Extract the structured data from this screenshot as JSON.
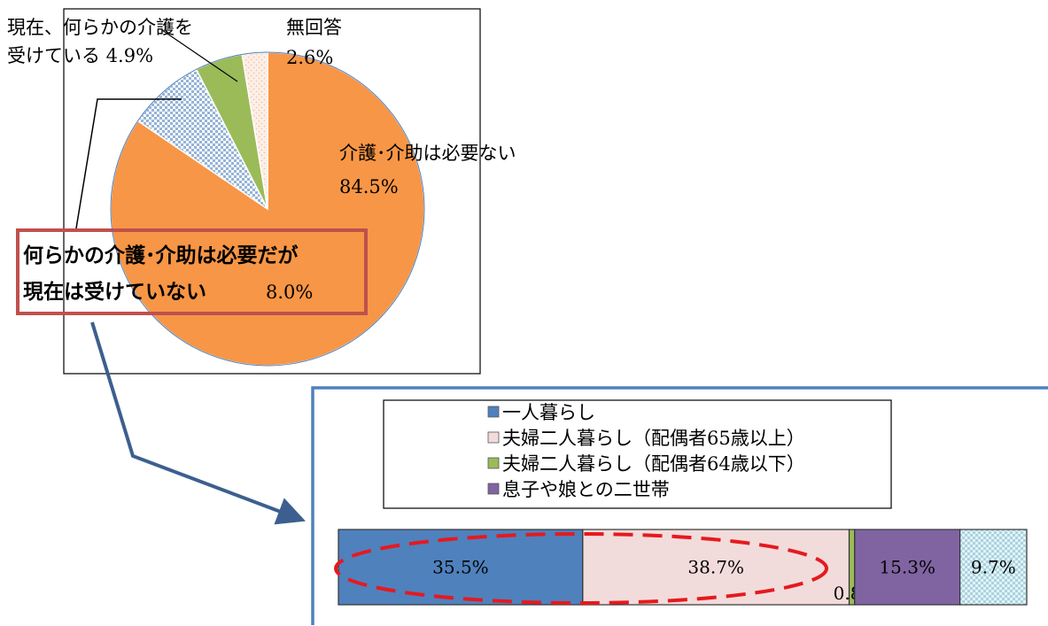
{
  "colors": {
    "care_not_needed": "#F79646",
    "care_needed_not_received": "#B9CDE5",
    "receiving_care": "#9BBB59",
    "no_answer": "#FBE4D5",
    "living_alone": "#4F81BD",
    "couple_65_plus": "#F2DCDB",
    "couple_64_under": "#9BBB59",
    "two_generation": "#8064A2",
    "other": "#DAEEF3",
    "callout_border": "#C0504D",
    "arrow": "#3C5F8F",
    "ellipse": "#E6191E"
  },
  "pie_labels": {
    "receiving_line1": "現在、何らかの介護を",
    "receiving_line2": "受けている 4.9%",
    "no_answer_line1": "無回答",
    "no_answer_line2": "2.6%",
    "not_needed_line1": "介護･介助は必要ない",
    "not_needed_line2": "84.5%",
    "callout_line1": "何らかの介護･介助は必要だが",
    "callout_line2": "現在は受けていない",
    "callout_pct": "8.0%"
  },
  "legend": [
    {
      "label": "一人暮らし",
      "color": "#4F81BD"
    },
    {
      "label": "夫婦二人暮らし（配偶者65歳以上）",
      "color": "#F2DCDB"
    },
    {
      "label": "夫婦二人暮らし（配偶者64歳以下）",
      "color": "#9BBB59"
    },
    {
      "label": "息子や娘との二世帯",
      "color": "#8064A2"
    }
  ],
  "bar_labels": [
    "35.5%",
    "38.7%",
    "0.8%",
    "15.3%",
    "9.7%"
  ],
  "chart_data": [
    {
      "type": "pie",
      "categories": [
        "介護･介助は必要ない",
        "何らかの介護･介助は必要だが現在は受けていない",
        "現在、何らかの介護を受けている",
        "無回答"
      ],
      "values": [
        84.5,
        8.0,
        4.9,
        2.6
      ],
      "unit": "%",
      "start": "12 o'clock",
      "direction": "clockwise"
    },
    {
      "type": "bar",
      "orientation": "horizontal",
      "stacked": true,
      "normalized": "100%",
      "series": [
        {
          "name": "一人暮らし",
          "values": [
            35.5
          ]
        },
        {
          "name": "夫婦二人暮らし（配偶者65歳以上）",
          "values": [
            38.7
          ]
        },
        {
          "name": "夫婦二人暮らし（配偶者64歳以下）",
          "values": [
            0.8
          ]
        },
        {
          "name": "息子や娘との二世帯",
          "values": [
            15.3
          ]
        },
        {
          "values": [
            9.7
          ]
        }
      ],
      "legend_position": "top"
    }
  ]
}
